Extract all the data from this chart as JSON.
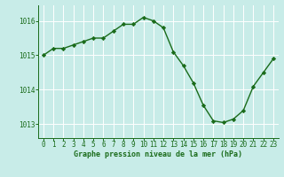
{
  "x": [
    0,
    1,
    2,
    3,
    4,
    5,
    6,
    7,
    8,
    9,
    10,
    11,
    12,
    13,
    14,
    15,
    16,
    17,
    18,
    19,
    20,
    21,
    22,
    23
  ],
  "y": [
    1015.0,
    1015.2,
    1015.2,
    1015.3,
    1015.4,
    1015.5,
    1015.5,
    1015.7,
    1015.9,
    1015.9,
    1016.1,
    1016.0,
    1015.8,
    1015.1,
    1014.7,
    1014.2,
    1013.55,
    1013.1,
    1013.05,
    1013.15,
    1013.4,
    1014.1,
    1014.5,
    1014.9
  ],
  "line_color": "#1a6b1a",
  "marker_color": "#1a6b1a",
  "bg_color": "#c8ece8",
  "grid_color": "#ffffff",
  "xlabel": "Graphe pression niveau de la mer (hPa)",
  "xlabel_color": "#1a6b1a",
  "tick_color": "#1a6b1a",
  "ylim": [
    1012.6,
    1016.45
  ],
  "yticks": [
    1013,
    1014,
    1015,
    1016
  ],
  "xticks": [
    0,
    1,
    2,
    3,
    4,
    5,
    6,
    7,
    8,
    9,
    10,
    11,
    12,
    13,
    14,
    15,
    16,
    17,
    18,
    19,
    20,
    21,
    22,
    23
  ],
  "label_fontsize": 6.0,
  "tick_fontsize": 5.5
}
